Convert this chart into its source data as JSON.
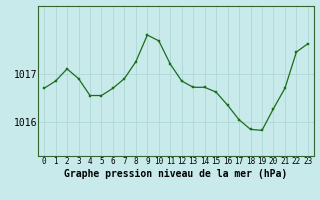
{
  "x": [
    0,
    1,
    2,
    3,
    4,
    5,
    6,
    7,
    8,
    9,
    10,
    11,
    12,
    13,
    14,
    15,
    16,
    17,
    18,
    19,
    20,
    21,
    22,
    23
  ],
  "y": [
    1016.7,
    1016.85,
    1017.1,
    1016.9,
    1016.55,
    1016.55,
    1016.7,
    1016.9,
    1017.25,
    1017.8,
    1017.68,
    1017.2,
    1016.85,
    1016.72,
    1016.72,
    1016.62,
    1016.35,
    1016.05,
    1015.85,
    1015.83,
    1016.28,
    1016.7,
    1017.45,
    1017.62
  ],
  "line_color": "#1a6e1a",
  "marker_color": "#1a6e1a",
  "background_color": "#c8eaea",
  "grid_color": "#b0d8d8",
  "xlabel": "Graphe pression niveau de la mer (hPa)",
  "yticks": [
    1016,
    1017
  ],
  "ylim": [
    1015.3,
    1018.4
  ],
  "xlim": [
    -0.5,
    23.5
  ],
  "xtick_labels": [
    "0",
    "1",
    "2",
    "3",
    "4",
    "5",
    "6",
    "7",
    "8",
    "9",
    "10",
    "11",
    "12",
    "13",
    "14",
    "15",
    "16",
    "17",
    "18",
    "19",
    "20",
    "21",
    "22",
    "23"
  ],
  "fontsize_xlabel": 7,
  "fontsize_yticks": 7,
  "fontsize_xticks": 5.5,
  "linewidth": 0.9,
  "markersize": 2.0
}
